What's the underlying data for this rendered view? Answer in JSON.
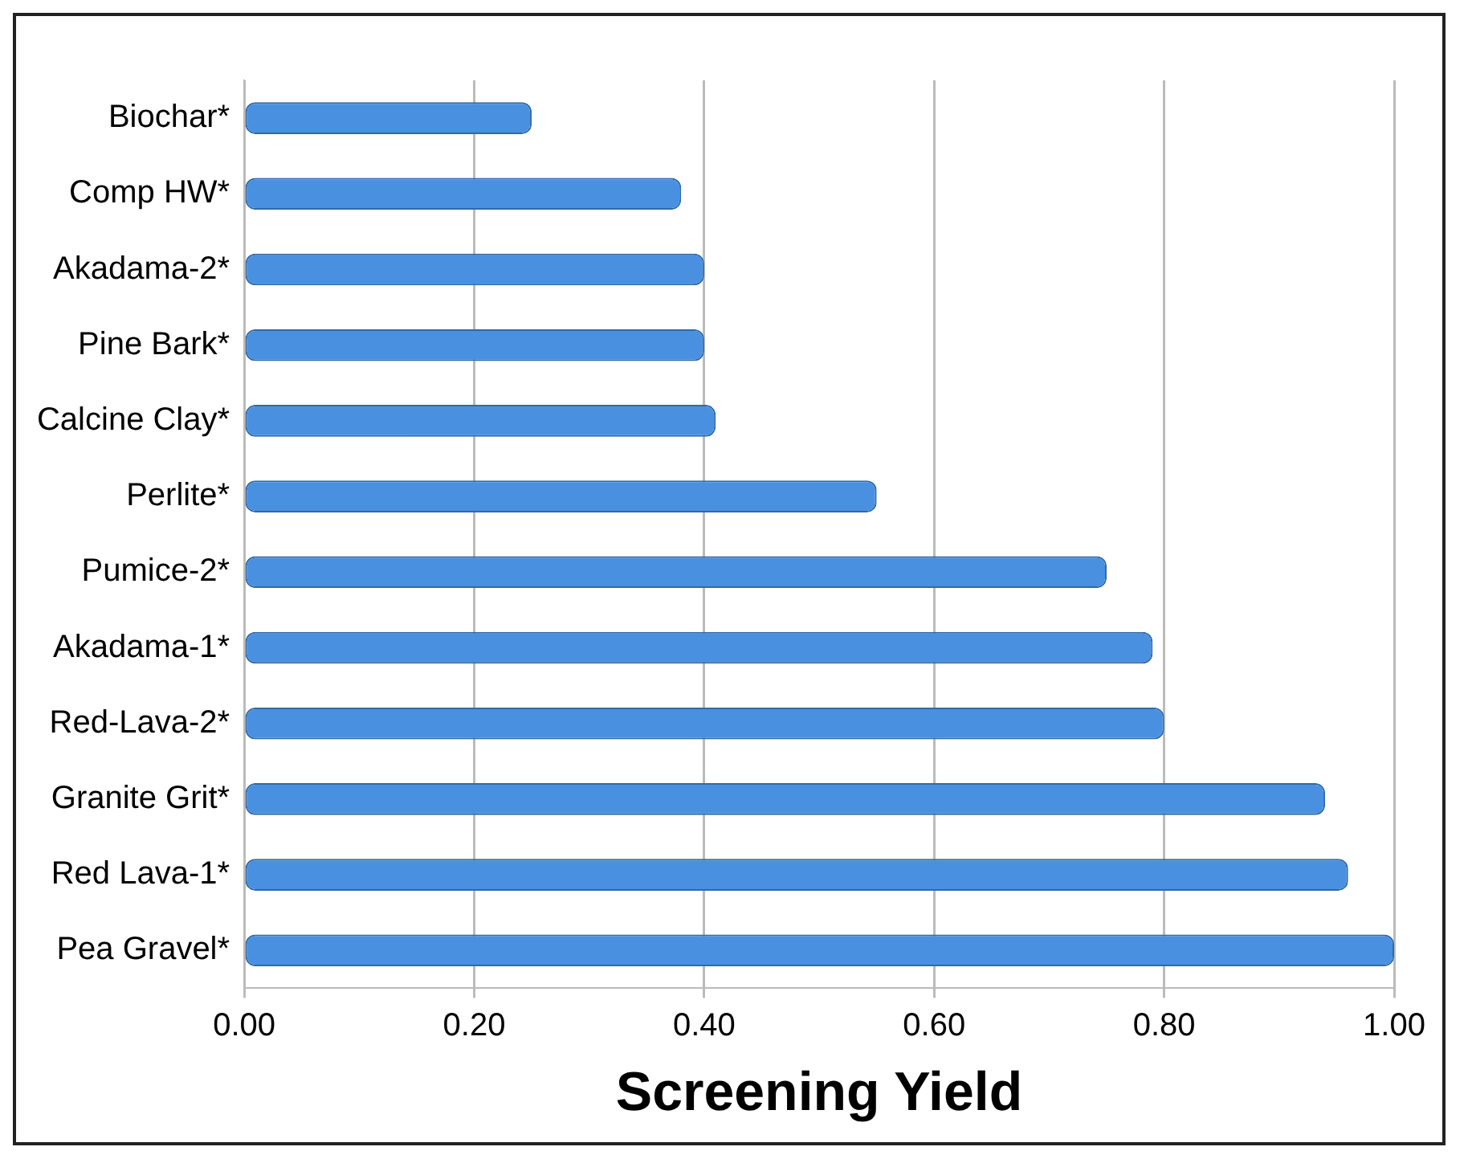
{
  "chart_data": {
    "type": "bar",
    "orientation": "horizontal",
    "xlabel": "Screening Yield",
    "categories": [
      "Biochar*",
      "Comp HW*",
      "Akadama-2*",
      "Pine Bark*",
      "Calcine Clay*",
      "Perlite*",
      "Pumice-2*",
      "Akadama-1*",
      "Red-Lava-2*",
      "Granite Grit*",
      "Red Lava-1*",
      "Pea Gravel*"
    ],
    "values": [
      0.25,
      0.38,
      0.4,
      0.4,
      0.41,
      0.55,
      0.75,
      0.79,
      0.8,
      0.94,
      0.96,
      1.0
    ],
    "color": "#4a90e0",
    "xlim": [
      0,
      1
    ],
    "xticks": [
      {
        "value": 0,
        "label": "0.00"
      },
      {
        "value": 0.2,
        "label": "0.20"
      },
      {
        "value": 0.4,
        "label": "0.40"
      },
      {
        "value": 0.6,
        "label": "0.60"
      },
      {
        "value": 0.8,
        "label": "0.80"
      },
      {
        "value": 1,
        "label": "1.00"
      }
    ],
    "grid": "x",
    "legend": false
  }
}
